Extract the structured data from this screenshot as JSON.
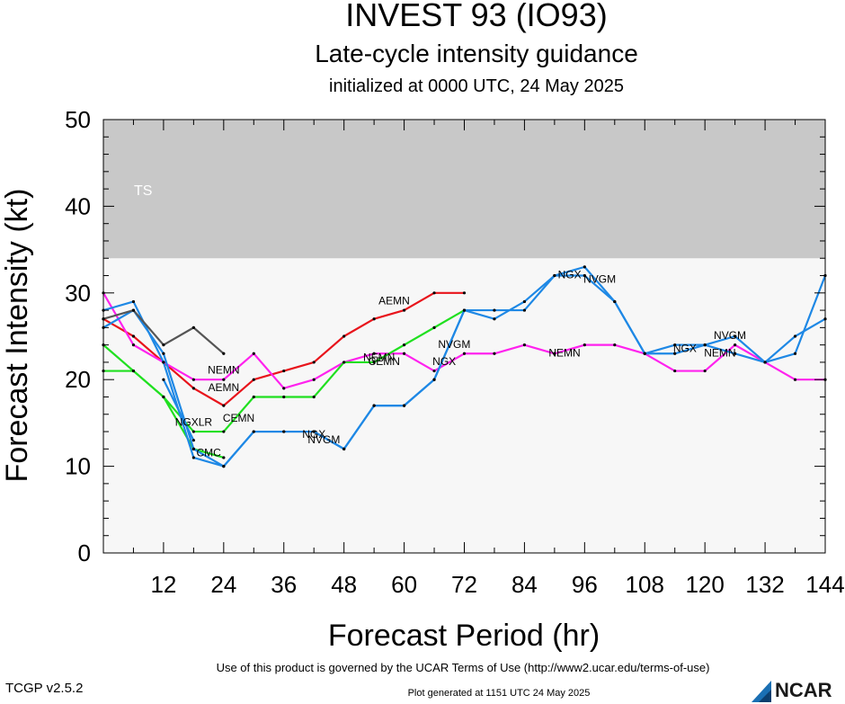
{
  "header": {
    "title": "INVEST 93 (IO93)",
    "subtitle": "Late-cycle intensity guidance",
    "init": "initialized at 0000 UTC, 24 May 2025"
  },
  "footer": {
    "terms": "Use of this product is governed by the UCAR Terms of Use (http://www2.ucar.edu/terms-of-use)",
    "version": "TCGP v2.5.2",
    "generated": "Plot generated at 1151 UTC   24 May 2025",
    "logo_text": "NCAR"
  },
  "chart_data": {
    "type": "line",
    "xlabel": "Forecast Period (hr)",
    "ylabel": "Forecast Intensity (kt)",
    "xlim": [
      0,
      144
    ],
    "ylim": [
      0,
      50
    ],
    "x_ticks": [
      12,
      24,
      36,
      48,
      60,
      72,
      84,
      96,
      108,
      120,
      132,
      144
    ],
    "y_ticks": [
      0,
      10,
      20,
      30,
      40,
      50
    ],
    "bands": [
      {
        "label": "TS",
        "from": 34,
        "to": 50,
        "color": "#c8c8c8"
      }
    ],
    "plot_background": "#f7f7f7",
    "series": [
      {
        "name": "AEMN",
        "color": "#e8141b",
        "x": [
          0,
          6,
          12,
          18,
          24,
          30,
          36,
          42,
          48,
          54,
          60,
          66,
          72
        ],
        "y": [
          27,
          25,
          22,
          19,
          17,
          20,
          21,
          22,
          25,
          27,
          28,
          30,
          30
        ],
        "labels": [
          {
            "x": 24,
            "y": 19
          },
          {
            "x": 58,
            "y": 29
          }
        ]
      },
      {
        "name": "NEMN",
        "color": "#ff22ee",
        "x": [
          0,
          6,
          12,
          18,
          24,
          30,
          36,
          42,
          48,
          54,
          60,
          66,
          72,
          78,
          84,
          90,
          96,
          102,
          108,
          114,
          120,
          126,
          132,
          138,
          144
        ],
        "y": [
          30,
          24,
          22,
          20,
          20,
          23,
          19,
          20,
          22,
          23,
          23,
          21,
          23,
          23,
          24,
          23,
          24,
          24,
          23,
          21,
          21,
          24,
          22,
          20,
          20
        ],
        "labels": [
          {
            "x": 24,
            "y": 21
          },
          {
            "x": 55,
            "y": 22.5
          },
          {
            "x": 92,
            "y": 23
          },
          {
            "x": 123,
            "y": 23
          }
        ]
      },
      {
        "name": "CEMN",
        "color": "#20e020",
        "x": [
          0,
          6,
          12,
          18,
          24,
          30,
          36,
          42,
          48,
          54,
          60,
          66,
          72
        ],
        "y": [
          24,
          21,
          18,
          14,
          14,
          18,
          18,
          18,
          22,
          22,
          24,
          26,
          28
        ],
        "labels": [
          {
            "x": 27,
            "y": 15.5
          },
          {
            "x": 56,
            "y": 22
          }
        ]
      },
      {
        "name": "CMC",
        "color": "#20e020",
        "x": [
          0,
          6,
          12,
          18,
          24
        ],
        "y": [
          21,
          21,
          18,
          12,
          11
        ],
        "labels": [
          {
            "x": 21,
            "y": 11.5
          }
        ]
      },
      {
        "name": "NGX",
        "color": "#1e88e5",
        "x": [
          0,
          6,
          12,
          18,
          24,
          30,
          36,
          42,
          48,
          54,
          60,
          66,
          72,
          78,
          84,
          90,
          96,
          102,
          108,
          114,
          120,
          126,
          132,
          138,
          144
        ],
        "y": [
          28,
          29,
          22,
          11,
          10,
          14,
          14,
          14,
          12,
          17,
          17,
          20,
          28,
          27,
          29,
          32,
          32,
          29,
          23,
          24,
          24,
          23,
          22,
          25,
          27
        ],
        "labels": [
          {
            "x": 42,
            "y": 13.6
          },
          {
            "x": 68,
            "y": 22
          },
          {
            "x": 93,
            "y": 32
          },
          {
            "x": 116,
            "y": 23.5
          }
        ]
      },
      {
        "name": "NVGM",
        "color": "#1e88e5",
        "x": [
          0,
          6,
          12,
          18,
          24,
          30,
          36,
          42,
          48,
          54,
          60,
          66,
          72,
          78,
          84,
          90,
          96,
          102,
          108,
          114,
          120,
          126,
          132,
          138,
          144
        ],
        "y": [
          26,
          28,
          23,
          12,
          10,
          14,
          14,
          14,
          12,
          17,
          17,
          20,
          28,
          28,
          28,
          32,
          33,
          29,
          23,
          23,
          24,
          25,
          22,
          23,
          32
        ],
        "labels": [
          {
            "x": 44,
            "y": 13
          },
          {
            "x": 70,
            "y": 24
          },
          {
            "x": 99,
            "y": 31.5
          },
          {
            "x": 125,
            "y": 25
          }
        ]
      },
      {
        "name": "NGXLR",
        "color": "#1e88e5",
        "x": [
          12,
          18
        ],
        "y": [
          20,
          13
        ],
        "labels": [
          {
            "x": 18,
            "y": 15
          }
        ]
      },
      {
        "name": "",
        "color": "#555555",
        "x": [
          0,
          6,
          12,
          18,
          24
        ],
        "y": [
          27,
          28,
          24,
          26,
          23
        ],
        "labels": []
      }
    ]
  }
}
